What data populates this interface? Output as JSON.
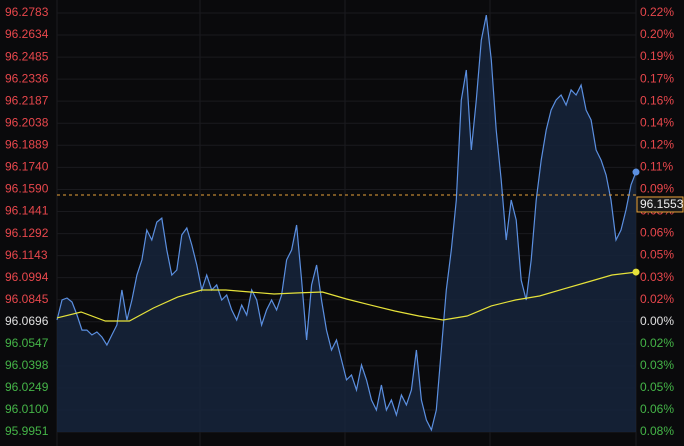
{
  "chart_data": {
    "type": "line",
    "ylim": [
      95.9951,
      96.2783
    ],
    "yticks": [
      96.2783,
      96.2634,
      96.2485,
      96.2336,
      96.2187,
      96.2038,
      96.1889,
      {
        "value": 96.174,
        "label": "96.1740"
      },
      {
        "value": 96.159,
        "label": "96.1590"
      },
      96.1441,
      96.1292,
      96.1143,
      96.0994,
      96.0845,
      96.0696,
      96.0547,
      96.0398,
      96.0249,
      {
        "value": 96.01,
        "label": "96.0100"
      },
      95.9951
    ],
    "y2lim": [
      -0.0776,
      0.2172
    ],
    "y2ticks": [
      {
        "value": 0.2172,
        "label": "0.22%"
      },
      {
        "value": 0.2017,
        "label": "0.20%"
      },
      {
        "value": 0.1862,
        "label": "0.19%"
      },
      {
        "value": 0.1707,
        "label": "0.17%"
      },
      {
        "value": 0.1552,
        "label": "0.16%"
      },
      {
        "value": 0.1397,
        "label": "0.14%"
      },
      {
        "value": 0.1242,
        "label": "0.12%"
      },
      {
        "value": 0.1087,
        "label": "0.11%"
      },
      {
        "value": 0.0931,
        "label": "0.09%"
      },
      {
        "value": 0.0776,
        "label": "0.08%"
      },
      {
        "value": 0.0621,
        "label": "0.06%"
      },
      {
        "value": 0.0466,
        "label": "0.05%"
      },
      {
        "value": 0.031,
        "label": "0.03%"
      },
      {
        "value": 0.0155,
        "label": "0.02%"
      },
      {
        "value": 0,
        "label": "0.00%"
      },
      {
        "value": -0.0155,
        "label": "0.02%"
      },
      {
        "value": -0.031,
        "label": "0.03%"
      },
      {
        "value": -0.0466,
        "label": "0.05%"
      },
      {
        "value": -0.0621,
        "label": "0.06%"
      },
      {
        "value": -0.0776,
        "label": "0.08%"
      }
    ],
    "up_color": "#e8474c",
    "down_color": "#45b548",
    "flat_color": "#e0e0e0",
    "grid": true,
    "current_price": 96.1553,
    "current_color": "#e8a23a",
    "series": [
      {
        "color": "#5b8fe0",
        "fill": "#16243c",
        "values": [
          96.0708,
          96.0843,
          96.0857,
          96.083,
          96.0742,
          96.064,
          96.064,
          96.0607,
          96.0627,
          96.0593,
          96.0539,
          96.0607,
          96.0674,
          96.0911,
          96.0708,
          96.0843,
          96.1012,
          96.1114,
          96.1316,
          96.1249,
          96.137,
          96.1397,
          96.1181,
          96.1012,
          96.1046,
          96.1283,
          96.133,
          96.1215,
          96.108,
          96.0911,
          96.1012,
          96.0911,
          96.0945,
          96.0843,
          96.0877,
          96.0776,
          96.0708,
          96.0809,
          96.0742,
          96.0911,
          96.0843,
          96.0674,
          96.0776,
          96.0843,
          96.0776,
          96.0877,
          96.1114,
          96.1181,
          96.135,
          96.0978,
          96.0573,
          96.0945,
          96.108,
          96.0843,
          96.064,
          96.0505,
          96.0573,
          96.0438,
          96.0303,
          96.0336,
          96.0235,
          96.0404,
          96.0303,
          96.0167,
          96.01,
          96.0269,
          96.01,
          96.0167,
          96.0066,
          96.0201,
          96.0134,
          96.0235,
          96.0505,
          96.0167,
          96.0032,
          95.9965,
          96.01,
          96.0505,
          96.0911,
          96.1181,
          96.1519,
          96.2195,
          96.2398,
          96.1857,
          96.2195,
          96.26,
          96.2769,
          96.2465,
          96.1992,
          96.1654,
          96.1249,
          96.1519,
          96.1384,
          96.0978,
          96.0843,
          96.1114,
          96.1519,
          96.1789,
          96.1992,
          96.2127,
          96.2195,
          96.2229,
          96.2161,
          96.2263,
          96.2229,
          96.2296,
          96.2127,
          96.206,
          96.1857,
          96.1789,
          96.1688,
          96.1519,
          96.1249,
          96.1316,
          96.1452,
          96.1621,
          96.1708
        ]
      },
      {
        "color": "#e6e23a",
        "values": [
          96.0722,
          96.0762,
          96.0701,
          96.0701,
          96.0789,
          96.0863,
          96.0911,
          96.0911,
          96.0897,
          96.0884,
          96.0891,
          96.0897,
          96.085,
          96.0809,
          96.0769,
          96.0735,
          96.0708,
          96.0735,
          96.0803,
          96.0843,
          96.087,
          96.0918,
          96.0965,
          96.1012,
          96.1032
        ]
      }
    ]
  }
}
